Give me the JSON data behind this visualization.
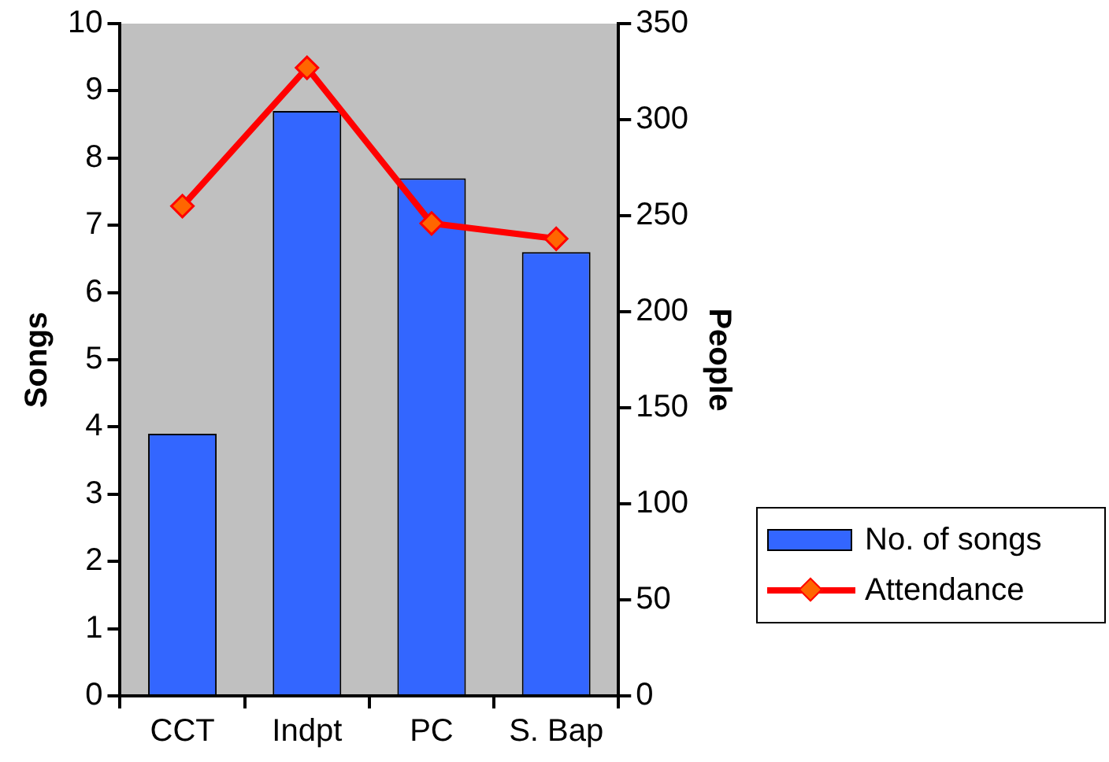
{
  "chart_data": {
    "type": "bar",
    "categories": [
      "CCT",
      "Indpt",
      "PC",
      "S. Bap"
    ],
    "ylabel": "Songs",
    "y2label": "People",
    "ylim": [
      0,
      10
    ],
    "yticks": [
      0,
      1,
      2,
      3,
      4,
      5,
      6,
      7,
      8,
      9,
      10
    ],
    "y2lim": [
      0,
      350
    ],
    "y2ticks": [
      0,
      50,
      100,
      150,
      200,
      250,
      300,
      350
    ],
    "series": [
      {
        "name": "No. of songs",
        "color": "#3366ff",
        "values": [
          3.9,
          8.7,
          7.7,
          6.6
        ]
      },
      {
        "name": "Attendance",
        "type": "line",
        "axis": "y2",
        "color": "#ff0000",
        "marker": "diamond",
        "values": [
          255,
          327,
          246,
          238
        ]
      }
    ],
    "grid": false,
    "legend": "bottom right"
  }
}
